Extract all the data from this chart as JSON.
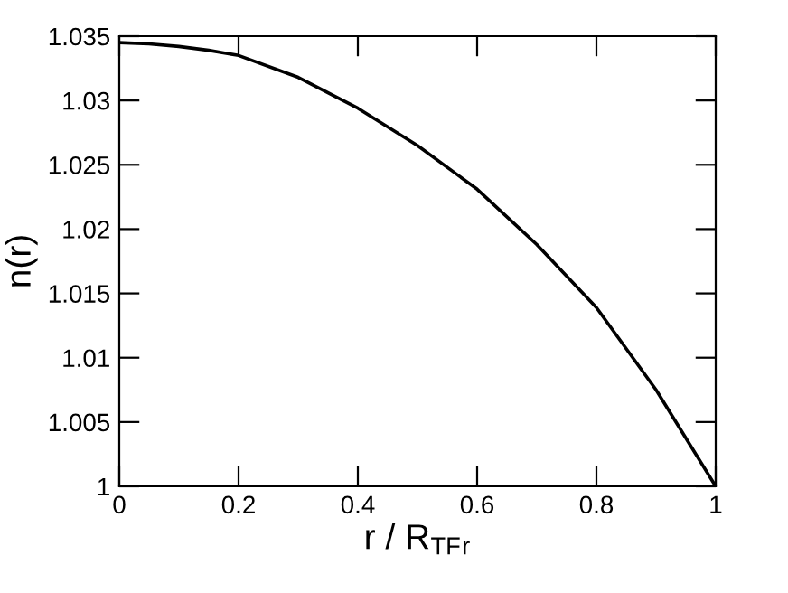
{
  "chart_data": {
    "type": "line",
    "xlabel": "r / R$_{TF}$$_{r}$",
    "ylabel": "n(r)",
    "x": [
      0,
      0.05,
      0.1,
      0.15,
      0.2,
      0.3,
      0.4,
      0.5,
      0.6,
      0.7,
      0.8,
      0.9,
      1.0
    ],
    "series": [
      {
        "color": "#000000",
        "values": [
          1.0345,
          1.0344,
          1.0342,
          1.0339,
          1.0335,
          1.0318,
          1.0294,
          1.0265,
          1.0231,
          1.0188,
          1.0139,
          1.0075,
          1.0
        ]
      }
    ],
    "xlim": [
      0,
      1
    ],
    "ylim": [
      1,
      1.035
    ],
    "xticks": [
      0,
      0.2,
      0.4,
      0.6,
      0.8,
      1
    ],
    "yticks": [
      1,
      1.005,
      1.01,
      1.015,
      1.02,
      1.025,
      1.03,
      1.035
    ],
    "grid": false,
    "legend": false,
    "marker": "none",
    "line_style": "solid"
  }
}
